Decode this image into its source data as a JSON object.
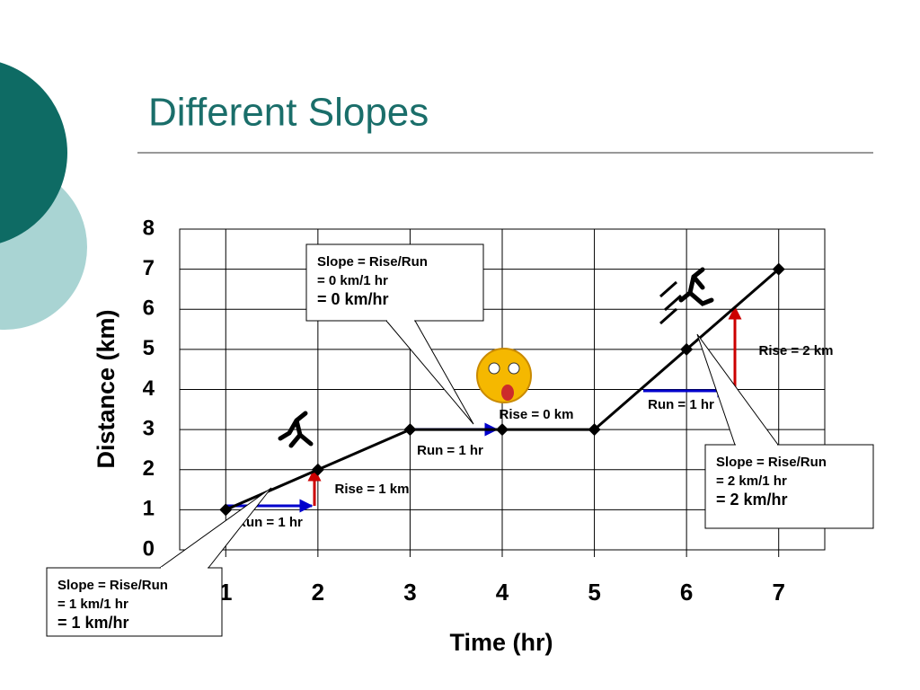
{
  "title": "Different Slopes",
  "chart_data": {
    "type": "line",
    "x": [
      1,
      2,
      3,
      4,
      5,
      6,
      7
    ],
    "values": [
      1,
      2,
      3,
      3,
      3,
      5,
      7
    ],
    "color": "#000000",
    "xlim": [
      0.5,
      7.5
    ],
    "xticks": [
      1,
      2,
      3,
      4,
      5,
      6,
      7
    ],
    "ylim": [
      0,
      8
    ],
    "yticks": [
      0,
      1,
      2,
      3,
      4,
      5,
      6,
      7,
      8
    ],
    "grid": true,
    "x_label": "Time (hr)",
    "y_label": "Distance (km)",
    "labels": [
      "Run = 1 hr",
      "Rise = 1 km",
      "Run = 1 hr",
      "Rise = 0 km",
      "Run = 1 hr",
      "Rise = 2 km"
    ],
    "callouts": [
      [
        "Slope = Rise/Run",
        "= 1 km/1 hr",
        "= 1 km/hr"
      ],
      [
        "Slope = Rise/Run",
        "= 0 km/1 hr",
        "= 0 km/hr"
      ],
      [
        "Slope = Rise/Run",
        "= 2 km/1 hr",
        "= 2 km/hr"
      ]
    ]
  }
}
